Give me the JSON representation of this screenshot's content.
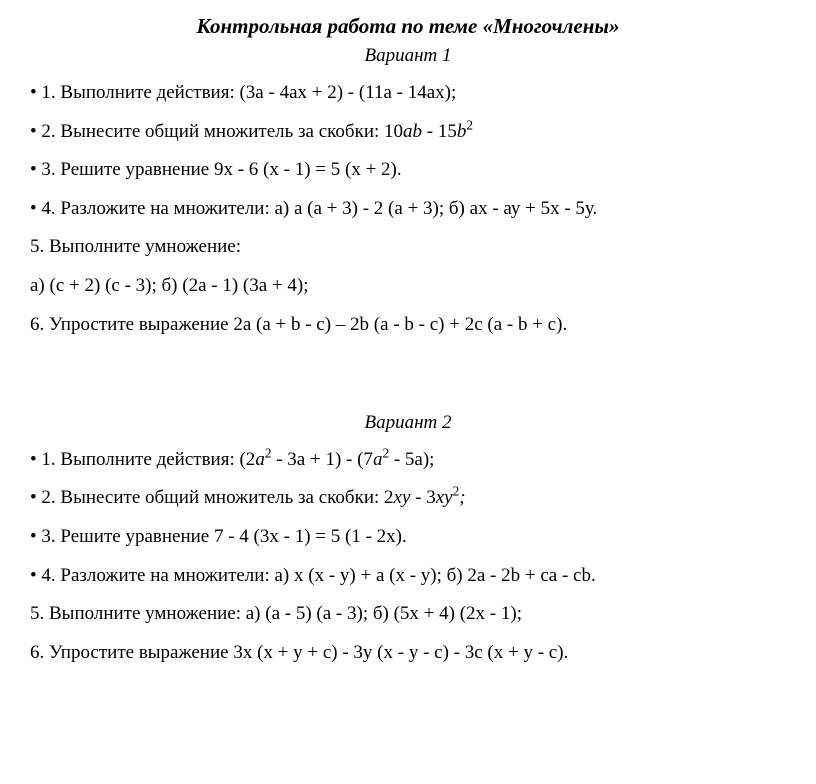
{
  "title": "Контрольная работа по теме «Многочлены»",
  "variant1": {
    "label": "Вариант 1",
    "tasks": {
      "t1": "1. Выполните действия: (3а - 4ах + 2) - (11а - 14ах);",
      "t2_prefix": "2. Вынесите общий множитель за скобки: 10",
      "t2_mid": " - 15",
      "t3": "3. Решите уравнение 9х - 6 (х - 1) = 5 (х + 2).",
      "t4": "4. Разложите на множители: а) а (а + 3) - 2 (а + 3); б) ах - ау + 5х - 5у.",
      "t5": "5. Выполните умножение:",
      "t5a": "а) (с + 2) (с - 3); б) (2а - 1) (3а + 4);",
      "t6": "6. Упростите выражение 2a (a + b - c) – 2b (a - b - c) + 2c (a - b + c)."
    }
  },
  "variant2": {
    "label": "Вариант 2",
    "tasks": {
      "t1_prefix": "1. Выполните действия: (2",
      "t1_mid1": " - 3а + 1) - (7",
      "t1_suffix": " - 5а);",
      "t2_prefix": "2. Вынесите общий множитель за скобки: 2",
      "t2_mid": " - 3",
      "t3": "3. Решите уравнение 7 - 4 (3х - 1) = 5 (1 - 2х).",
      "t4": "4. Разложите на множители: а) х (х - у) + а (х - у); б) 2a - 2b + ca - cb.",
      "t5": "5. Выполните умножение:  а) (а - 5) (а - 3); б) (5х + 4) (2х - 1);",
      "t6": "6. Упростите выражение 3x (x + y + c) - 3y (x - y - c) - 3c (x + y - c)."
    }
  },
  "math": {
    "ab": "ab",
    "b": "b",
    "a": "a",
    "xy": "xy",
    "semicolon": ";",
    "sq": "2"
  }
}
